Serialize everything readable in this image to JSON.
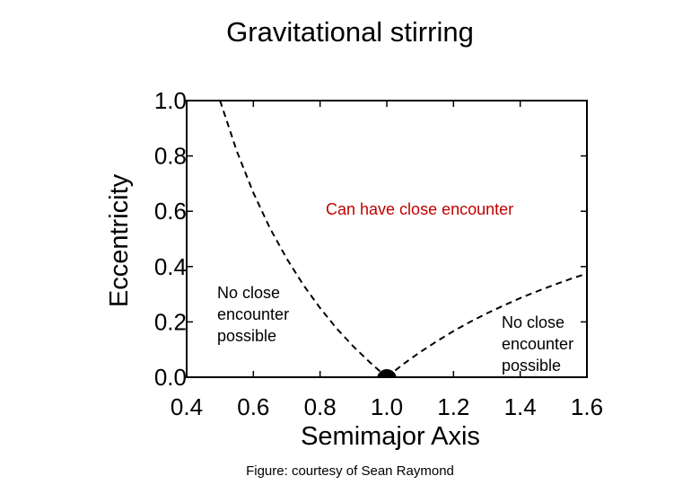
{
  "title": "Gravitational stirring",
  "credit": "Figure: courtesy of Sean Raymond",
  "chart_data": {
    "type": "line",
    "title": "Gravitational stirring",
    "xlabel": "Semimajor Axis",
    "ylabel": "Eccentricity",
    "xlim": [
      0.4,
      1.6
    ],
    "ylim": [
      0.0,
      1.0
    ],
    "xticks": [
      0.4,
      0.6,
      0.8,
      1.0,
      1.2,
      1.4,
      1.6
    ],
    "yticks": [
      0.0,
      0.2,
      0.4,
      0.6,
      0.8,
      1.0
    ],
    "xtick_labels": [
      "0.4",
      "0.6",
      "0.8",
      "1.0",
      "1.2",
      "1.4",
      "1.6"
    ],
    "ytick_labels": [
      "0.0",
      "0.2",
      "0.4",
      "0.6",
      "0.8",
      "1.0"
    ],
    "grid": false,
    "series": [
      {
        "style": "dashed",
        "color": "#000000",
        "x": [
          0.5,
          0.55,
          0.6,
          0.65,
          0.7,
          0.75,
          0.8,
          0.85,
          0.9,
          0.95,
          1.0
        ],
        "y": [
          1.0,
          0.818,
          0.667,
          0.538,
          0.429,
          0.333,
          0.25,
          0.176,
          0.111,
          0.053,
          0.0
        ]
      },
      {
        "style": "dashed",
        "color": "#000000",
        "x": [
          1.0,
          1.05,
          1.1,
          1.15,
          1.2,
          1.25,
          1.3,
          1.35,
          1.4,
          1.45,
          1.5,
          1.55,
          1.6
        ],
        "y": [
          0.0,
          0.048,
          0.091,
          0.13,
          0.167,
          0.2,
          0.231,
          0.259,
          0.286,
          0.31,
          0.333,
          0.355,
          0.375
        ]
      }
    ],
    "points": [
      {
        "x": 1.0,
        "y": 0.0,
        "color": "#000000"
      }
    ],
    "annotations": [
      {
        "text": "Can have close encounter",
        "color": "#c00000"
      },
      {
        "text": "No close\nencounter\npossible",
        "color": "#000000"
      },
      {
        "text": "No close\nencounter\npossible",
        "color": "#000000"
      }
    ]
  }
}
